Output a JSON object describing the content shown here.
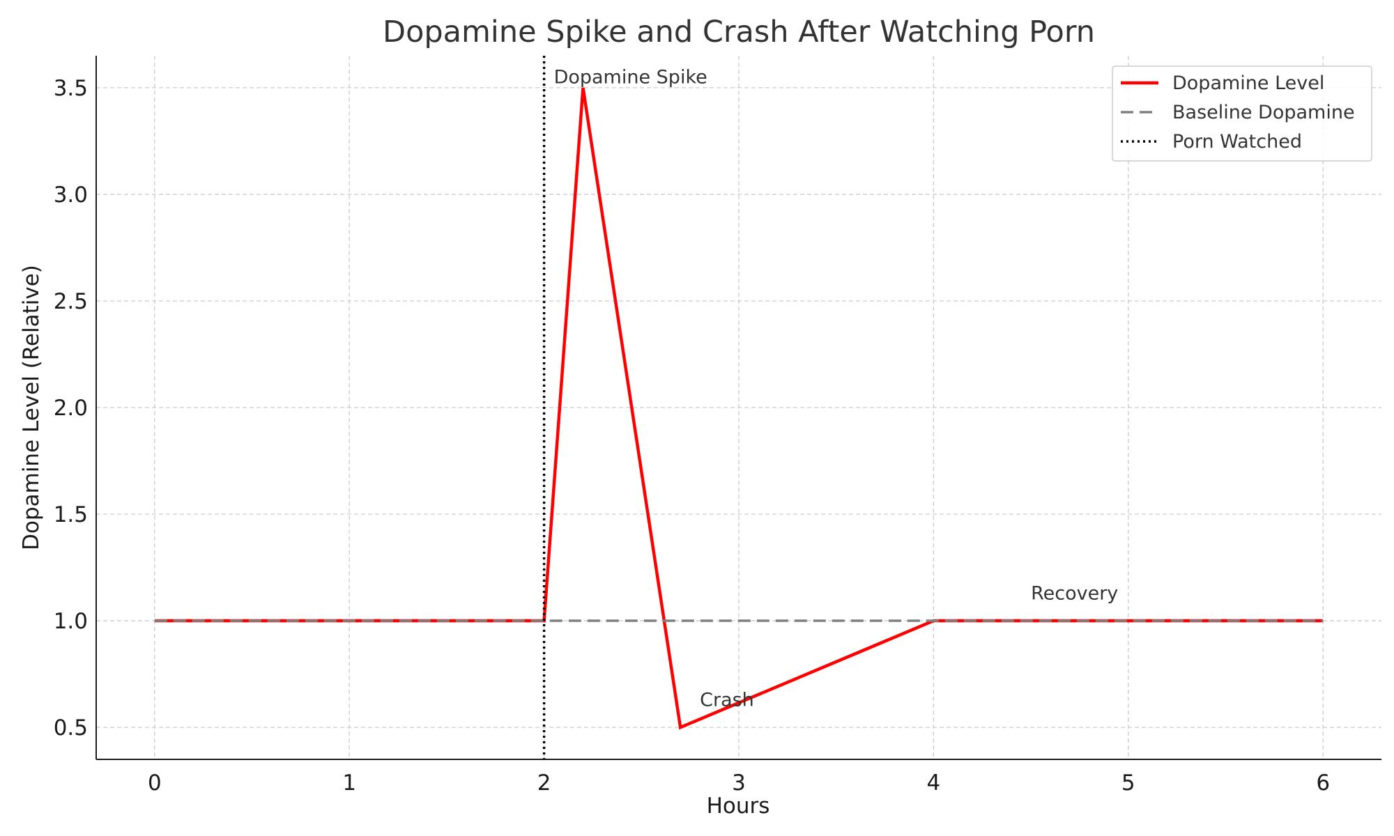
{
  "chart_data": {
    "type": "line",
    "title": "Dopamine Spike and Crash After Watching Porn",
    "xlabel": "Hours",
    "ylabel": "Dopamine Level (Relative)",
    "xlim": [
      -0.3,
      6.3
    ],
    "ylim": [
      0.35,
      3.65
    ],
    "xticks": [
      0,
      1,
      2,
      3,
      4,
      5,
      6
    ],
    "xtick_labels": [
      "0",
      "1",
      "2",
      "3",
      "4",
      "5",
      "6"
    ],
    "yticks": [
      0.5,
      1.0,
      1.5,
      2.0,
      2.5,
      3.0,
      3.5
    ],
    "ytick_labels": [
      "0.5",
      "1.0",
      "1.5",
      "2.0",
      "2.5",
      "3.0",
      "3.5"
    ],
    "grid": true,
    "legend_position": "top-right",
    "series": [
      {
        "name": "Dopamine Level",
        "color": "#ff0000",
        "style": "solid",
        "x": [
          0,
          2,
          2.2,
          2.7,
          4,
          6
        ],
        "y": [
          1.0,
          1.0,
          3.5,
          0.5,
          1.0,
          1.0
        ]
      },
      {
        "name": "Baseline Dopamine",
        "color": "#808080",
        "style": "dashed",
        "x": [
          0,
          6
        ],
        "y": [
          1.0,
          1.0
        ]
      }
    ],
    "vlines": [
      {
        "name": "Porn Watched",
        "x": 2,
        "color": "#000000",
        "style": "dotted"
      }
    ],
    "annotations": [
      {
        "text": "Dopamine Spike",
        "x": 2.05,
        "y": 3.55
      },
      {
        "text": "Crash",
        "x": 2.8,
        "y": 0.63
      },
      {
        "text": "Recovery",
        "x": 4.5,
        "y": 1.13
      }
    ]
  }
}
